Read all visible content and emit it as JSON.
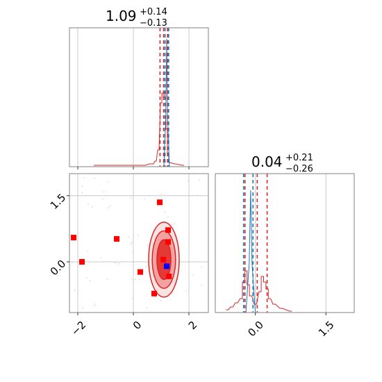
{
  "chart_data": {
    "type": "corner",
    "panels": [
      {
        "id": "param1-hist",
        "kind": "histogram",
        "title": {
          "value": "1.09",
          "plus": "+0.14",
          "minus": "−0.13"
        },
        "xlim": [
          -2.3,
          2.7
        ],
        "grid_x": [
          -2,
          0,
          2
        ],
        "bins": [
          {
            "x": -1.4,
            "y": 0.01
          },
          {
            "x": -0.6,
            "y": 0.01
          },
          {
            "x": 0.4,
            "y": 0.01
          },
          {
            "x": 0.6,
            "y": 0.02
          },
          {
            "x": 0.7,
            "y": 0.02
          },
          {
            "x": 0.8,
            "y": 0.04
          },
          {
            "x": 0.9,
            "y": 0.12
          },
          {
            "x": 1.0,
            "y": 0.46
          },
          {
            "x": 1.05,
            "y": 0.53
          },
          {
            "x": 1.1,
            "y": 0.5
          },
          {
            "x": 1.15,
            "y": 0.54
          },
          {
            "x": 1.2,
            "y": 0.27
          },
          {
            "x": 1.25,
            "y": 0.1
          },
          {
            "x": 1.3,
            "y": 0.03
          },
          {
            "x": 1.5,
            "y": 0.02
          },
          {
            "x": 1.8,
            "y": 0.01
          }
        ],
        "narrow_peak": {
          "x": 1.2,
          "height": 0.92
        },
        "quantile_lines_red": [
          0.96,
          1.09,
          1.23
        ],
        "quantile_lines_blue": [
          1.14,
          1.27
        ]
      },
      {
        "id": "param2-hist",
        "kind": "histogram",
        "title": {
          "value": "0.04",
          "plus": "+0.21",
          "minus": "−0.26"
        },
        "xlim": [
          -0.85,
          2.1
        ],
        "grid_x": [
          0.0,
          1.5
        ],
        "bins": [
          {
            "x": -0.6,
            "y": 0.02
          },
          {
            "x": -0.5,
            "y": 0.04
          },
          {
            "x": -0.4,
            "y": 0.07
          },
          {
            "x": -0.3,
            "y": 0.1
          },
          {
            "x": -0.25,
            "y": 0.22
          },
          {
            "x": -0.2,
            "y": 0.3
          },
          {
            "x": -0.15,
            "y": 0.2
          },
          {
            "x": -0.1,
            "y": 0.12
          },
          {
            "x": 0.0,
            "y": 0.06
          },
          {
            "x": 0.1,
            "y": 0.15
          },
          {
            "x": 0.15,
            "y": 0.26
          },
          {
            "x": 0.2,
            "y": 0.22
          },
          {
            "x": 0.25,
            "y": 0.17
          },
          {
            "x": 0.3,
            "y": 0.1
          },
          {
            "x": 0.4,
            "y": 0.06
          },
          {
            "x": 0.55,
            "y": 0.03
          },
          {
            "x": 0.75,
            "y": 0.01
          }
        ],
        "narrow_peak": {
          "x": -0.1,
          "height": 0.88
        },
        "quantile_lines_red": [
          -0.22,
          0.04,
          0.25
        ],
        "quantile_lines_blue": [
          -0.25,
          -0.05
        ]
      },
      {
        "id": "joint-scatter",
        "kind": "2d",
        "xlim": [
          -2.3,
          2.7
        ],
        "ylim": [
          -1.15,
          2.0
        ],
        "xticks": [
          "−2",
          "0",
          "2"
        ],
        "xtick_values": [
          -2,
          0,
          2
        ],
        "yticks": [
          "0.0",
          "1.5"
        ],
        "ytick_values": [
          0.0,
          1.5
        ],
        "contour_center": {
          "x": 1.1,
          "y": 0.05
        },
        "contour_levels": [
          {
            "rx": 0.25,
            "ry": 0.45,
            "fill": "#e53935"
          },
          {
            "rx": 0.42,
            "ry": 0.65,
            "fill": "#f4a1a1"
          },
          {
            "rx": 0.55,
            "ry": 0.85,
            "fill": "#fde2e2"
          }
        ],
        "red_squares": [
          {
            "x": -2.15,
            "y": 0.55
          },
          {
            "x": -1.85,
            "y": 0.0
          },
          {
            "x": -0.6,
            "y": 0.52
          },
          {
            "x": 0.25,
            "y": -0.23
          },
          {
            "x": 0.95,
            "y": 1.35
          },
          {
            "x": 1.25,
            "y": 0.72
          },
          {
            "x": 1.25,
            "y": 0.45
          },
          {
            "x": 1.08,
            "y": 0.05
          },
          {
            "x": 1.28,
            "y": -0.33
          },
          {
            "x": 0.75,
            "y": -0.72
          }
        ],
        "blue_square": {
          "x": 1.2,
          "y": -0.1
        }
      }
    ],
    "bottom_xticks": [
      "0.0",
      "1.5"
    ],
    "bottom_xtick_values": [
      0.0,
      1.5
    ],
    "colors": {
      "red": "#d62728",
      "blue": "#1f77b4",
      "grid": "#c8c8c8",
      "frame": "#808080"
    }
  }
}
